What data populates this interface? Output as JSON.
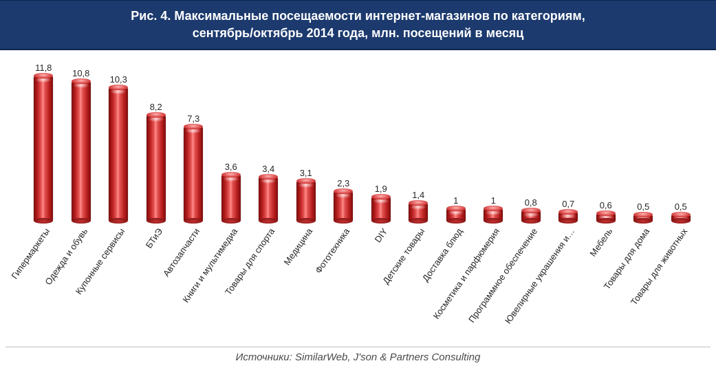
{
  "title_line1": "Рис. 4. Максимальные посещаемости интернет-магазинов по категориям,",
  "title_line2": "сентябрь/октябрь 2014 года, млн. посещений в месяц",
  "source_text": "Источники: SimilarWeb, J'son & Partners Consulting",
  "chart": {
    "type": "bar",
    "y_max": 12.2,
    "bar_color": "#b51b1b",
    "bar_highlight_color": "#ff8a8a",
    "bar_shadow_color": "#7a0f0f",
    "label_fontsize": 13,
    "label_color": "#262626",
    "title_bg": "#1c3a6e",
    "title_color": "#ffffff",
    "background_color": "#ffffff",
    "categories": [
      "Гипермаркеты",
      "Одежда и обувь",
      "Купонные сервисы",
      "БТиЭ",
      "Автозапчасти",
      "Книги и мультимедиа",
      "Товары для спорта",
      "Медицина",
      "Фототехника",
      "DIY",
      "Детские товары",
      "Доставка блюд",
      "Косметика и парфюмерия",
      "Программное обеспечение",
      "Ювелирные украшения и…",
      "Мебель",
      "Товары для дома",
      "Товары для животных"
    ],
    "values": [
      11.8,
      10.8,
      10.3,
      8.2,
      7.3,
      3.6,
      3.4,
      3.1,
      2.3,
      1.9,
      1.4,
      1.0,
      1.0,
      0.8,
      0.7,
      0.6,
      0.5,
      0.5
    ],
    "value_labels": [
      "11,8",
      "10,8",
      "10,3",
      "8,2",
      "7,3",
      "3,6",
      "3,4",
      "3,1",
      "2,3",
      "1,9",
      "1,4",
      "1",
      "1",
      "0,8",
      "0,7",
      "0,6",
      "0,5",
      "0,5"
    ]
  }
}
